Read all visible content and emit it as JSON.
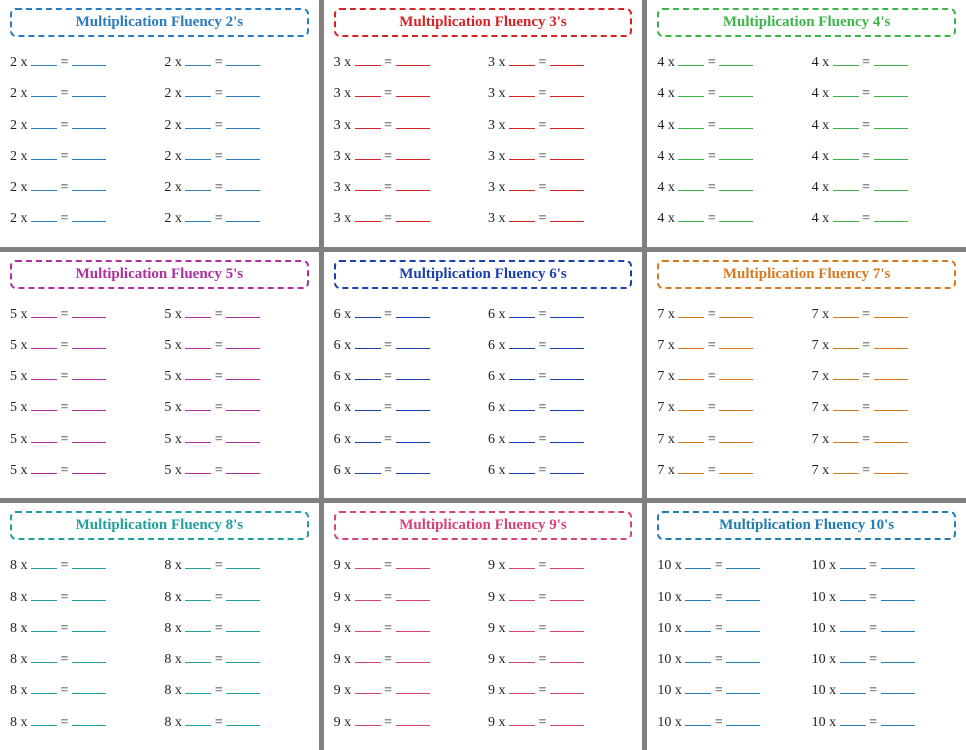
{
  "title_prefix": "Multiplication Fluency",
  "rows_per_column": 6,
  "columns_per_card": 2,
  "text_color": "#222222",
  "background_color": "#ffffff",
  "grid_gap_color": "#808080",
  "card_font_size": 14,
  "title_font_size": 15,
  "title_font_family": "Comic Sans MS",
  "cards": [
    {
      "number": "2",
      "suffix": "2's",
      "color": "#2a7bbf"
    },
    {
      "number": "3",
      "suffix": "3's",
      "color": "#d62424"
    },
    {
      "number": "4",
      "suffix": "4's",
      "color": "#3bb44a"
    },
    {
      "number": "5",
      "suffix": "5's",
      "color": "#b02ea0"
    },
    {
      "number": "6",
      "suffix": "6's",
      "color": "#1a3fb0"
    },
    {
      "number": "7",
      "suffix": "7's",
      "color": "#d67a1f"
    },
    {
      "number": "8",
      "suffix": "8's",
      "color": "#1fa0a0"
    },
    {
      "number": "9",
      "suffix": "9's",
      "color": "#d6427a"
    },
    {
      "number": "10",
      "suffix": "10's",
      "color": "#1f7db0"
    }
  ]
}
